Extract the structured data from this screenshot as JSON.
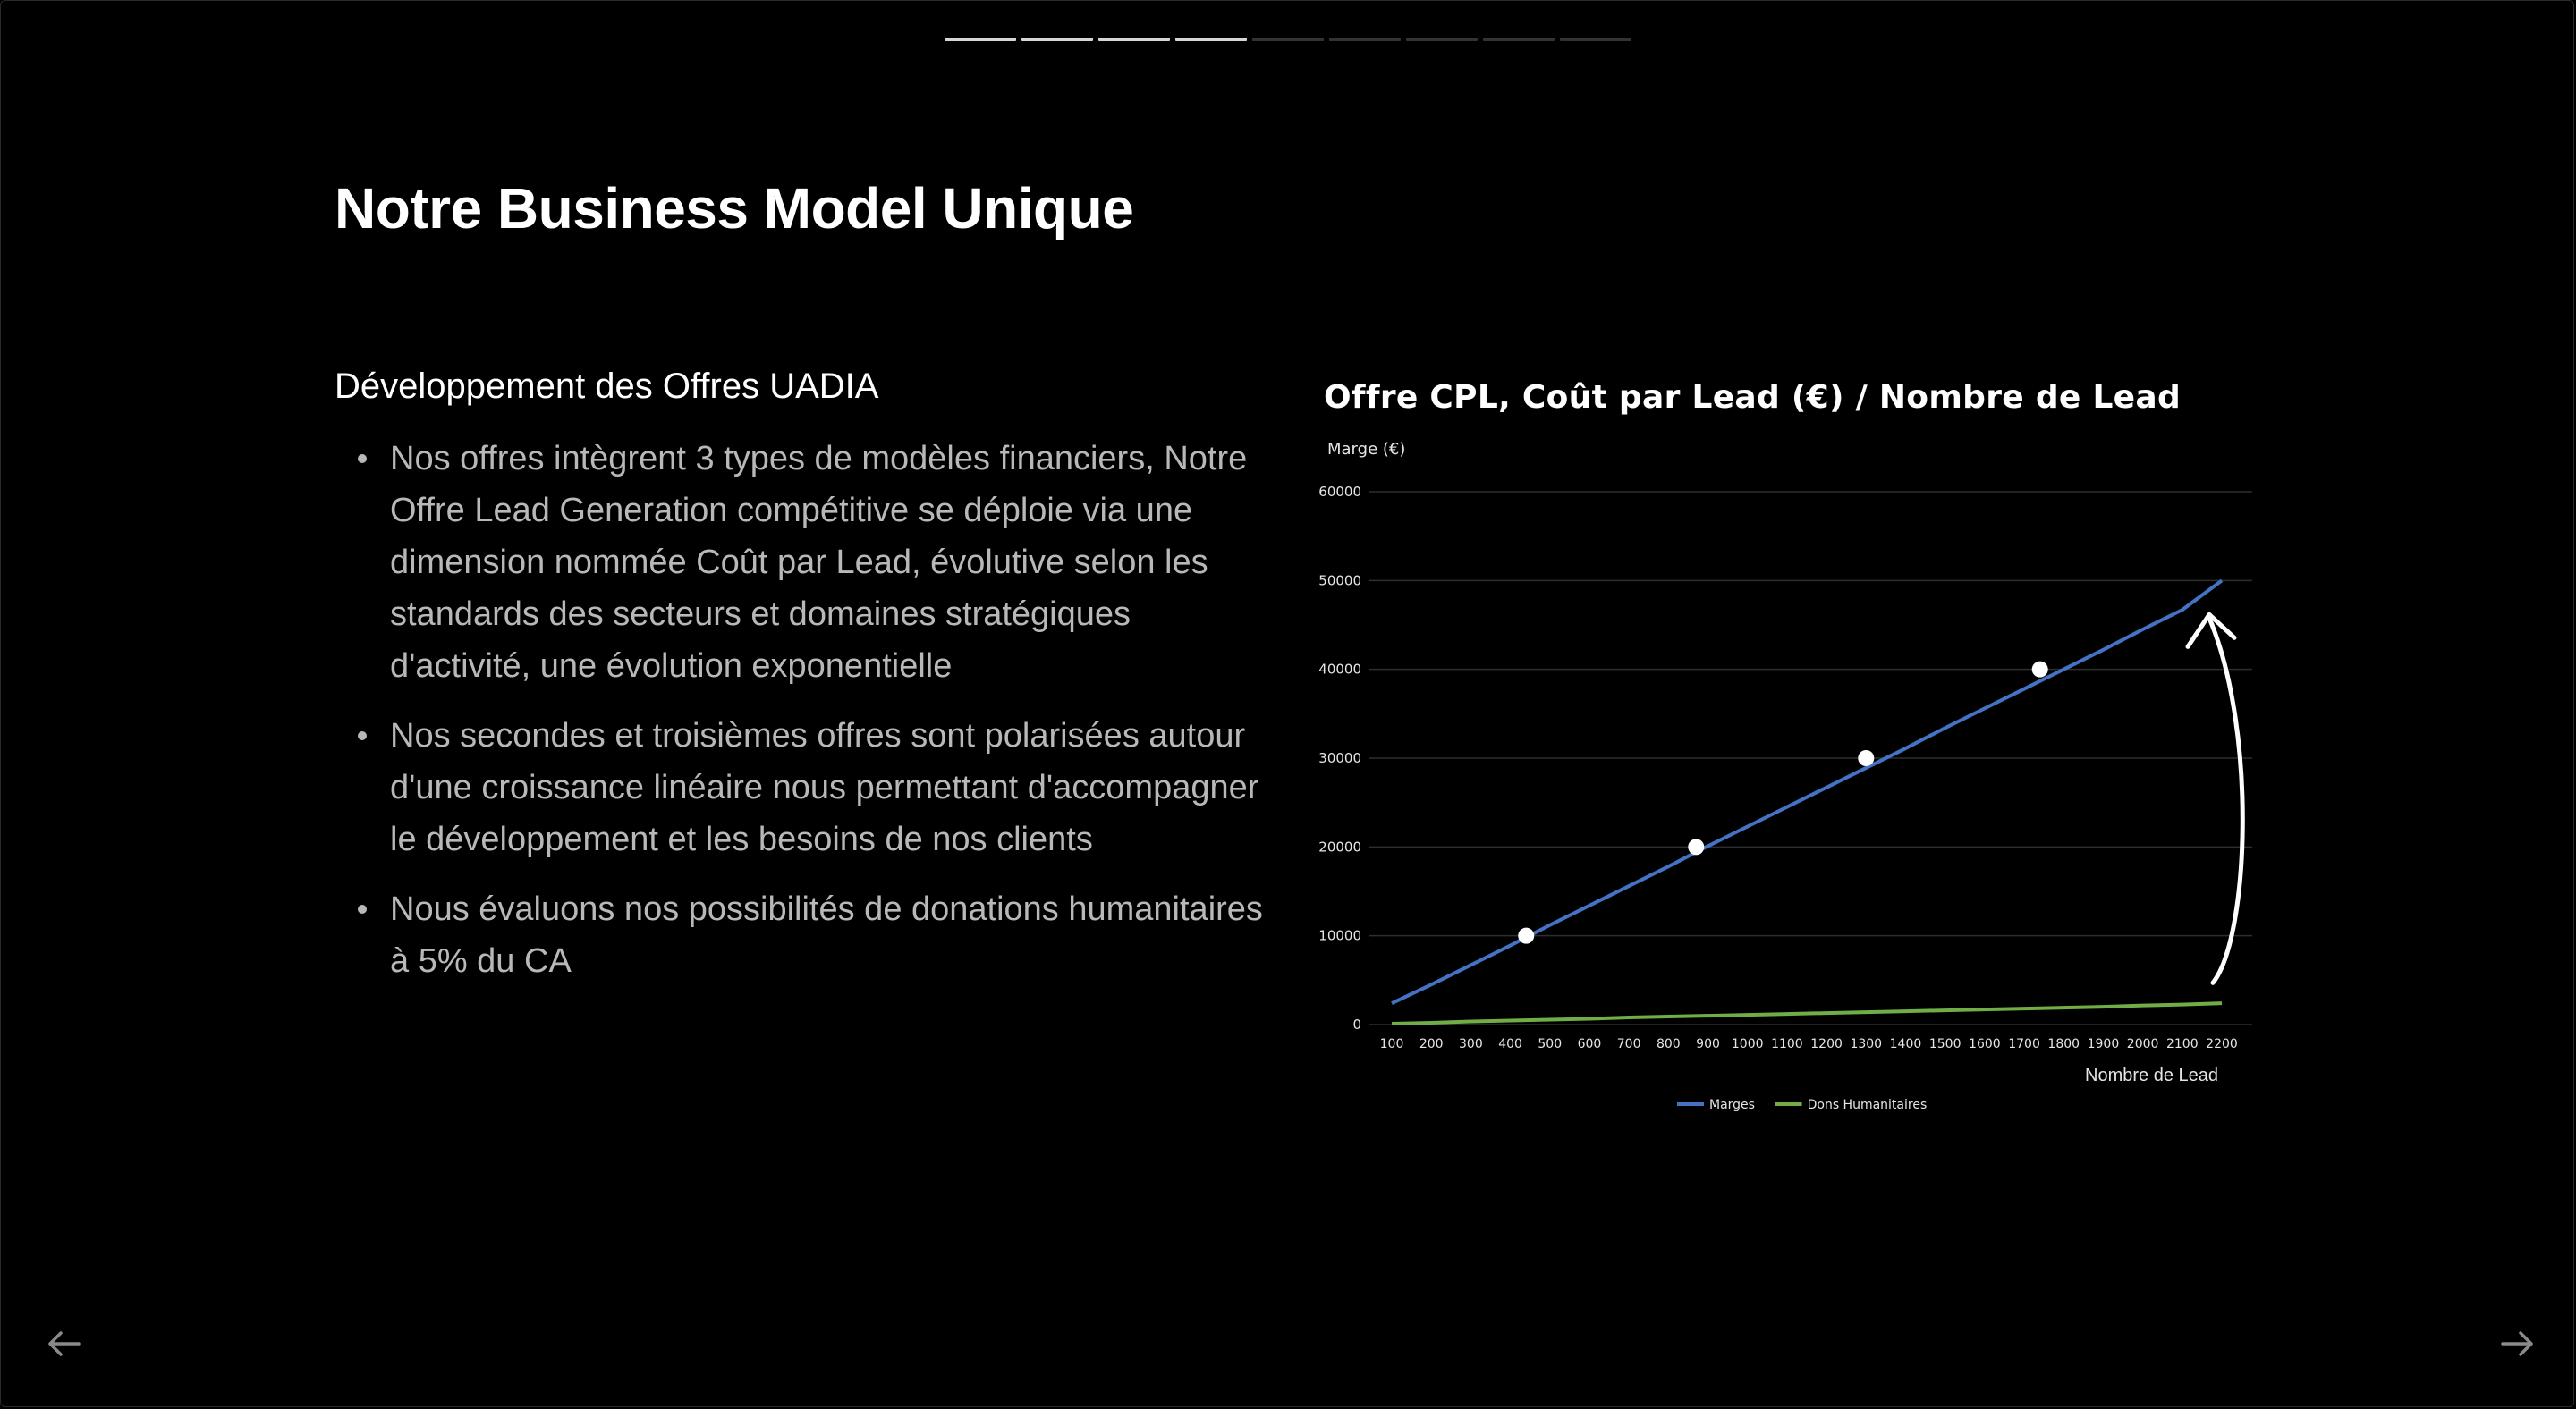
{
  "slide": {
    "title": "Notre Business Model Unique",
    "progress": {
      "total": 9,
      "current": 4
    }
  },
  "content": {
    "heading": "Développement des Offres UADIA",
    "bullets": [
      "Nos offres intègrent 3 types de modèles financiers, Notre Offre Lead Generation compétitive se déploie via une dimension nommée Coût par Lead, évolutive selon les standards des secteurs et domaines stratégiques d'activité, une évolution exponentielle",
      "Nos secondes et troisièmes offres sont polarisées autour d'une croissance linéaire nous permettant d'accompagner le développement et les besoins de nos clients",
      "Nous évaluons nos possibilités de donations humanitaires à 5% du CA"
    ]
  },
  "chart_data": {
    "type": "line",
    "title": "Offre CPL, Coût par Lead (€) / Nombre de Lead",
    "ylabel": "Marge (€)",
    "xlabel": "Nombre de Lead",
    "ylim": [
      0,
      60000
    ],
    "yticks": [
      0,
      10000,
      20000,
      30000,
      40000,
      50000,
      60000
    ],
    "x": [
      100,
      200,
      300,
      400,
      500,
      600,
      700,
      800,
      900,
      1000,
      1100,
      1200,
      1300,
      1400,
      1500,
      1600,
      1700,
      1800,
      1900,
      2000,
      2100,
      2200
    ],
    "grid": true,
    "legend_position": "bottom",
    "series": [
      {
        "name": "Marges",
        "color": "#4472c4",
        "values": [
          2400,
          4500,
          6700,
          8900,
          11200,
          13400,
          15600,
          17800,
          20100,
          22300,
          24500,
          26700,
          28900,
          31100,
          33400,
          35600,
          37800,
          40000,
          42200,
          44500,
          46700,
          50000
        ]
      },
      {
        "name": "Dons Humanitaires",
        "color": "#70ad47",
        "values": [
          100,
          200,
          350,
          450,
          550,
          650,
          800,
          900,
          1000,
          1100,
          1200,
          1300,
          1400,
          1500,
          1600,
          1700,
          1800,
          1900,
          2000,
          2150,
          2250,
          2400
        ]
      }
    ],
    "highlight_points": [
      {
        "x": 440,
        "y": 10000
      },
      {
        "x": 870,
        "y": 20000
      },
      {
        "x": 1300,
        "y": 30000
      },
      {
        "x": 1740,
        "y": 40000
      }
    ]
  },
  "navigation": {
    "prev_icon": "arrow-left-icon",
    "next_icon": "arrow-right-icon"
  }
}
